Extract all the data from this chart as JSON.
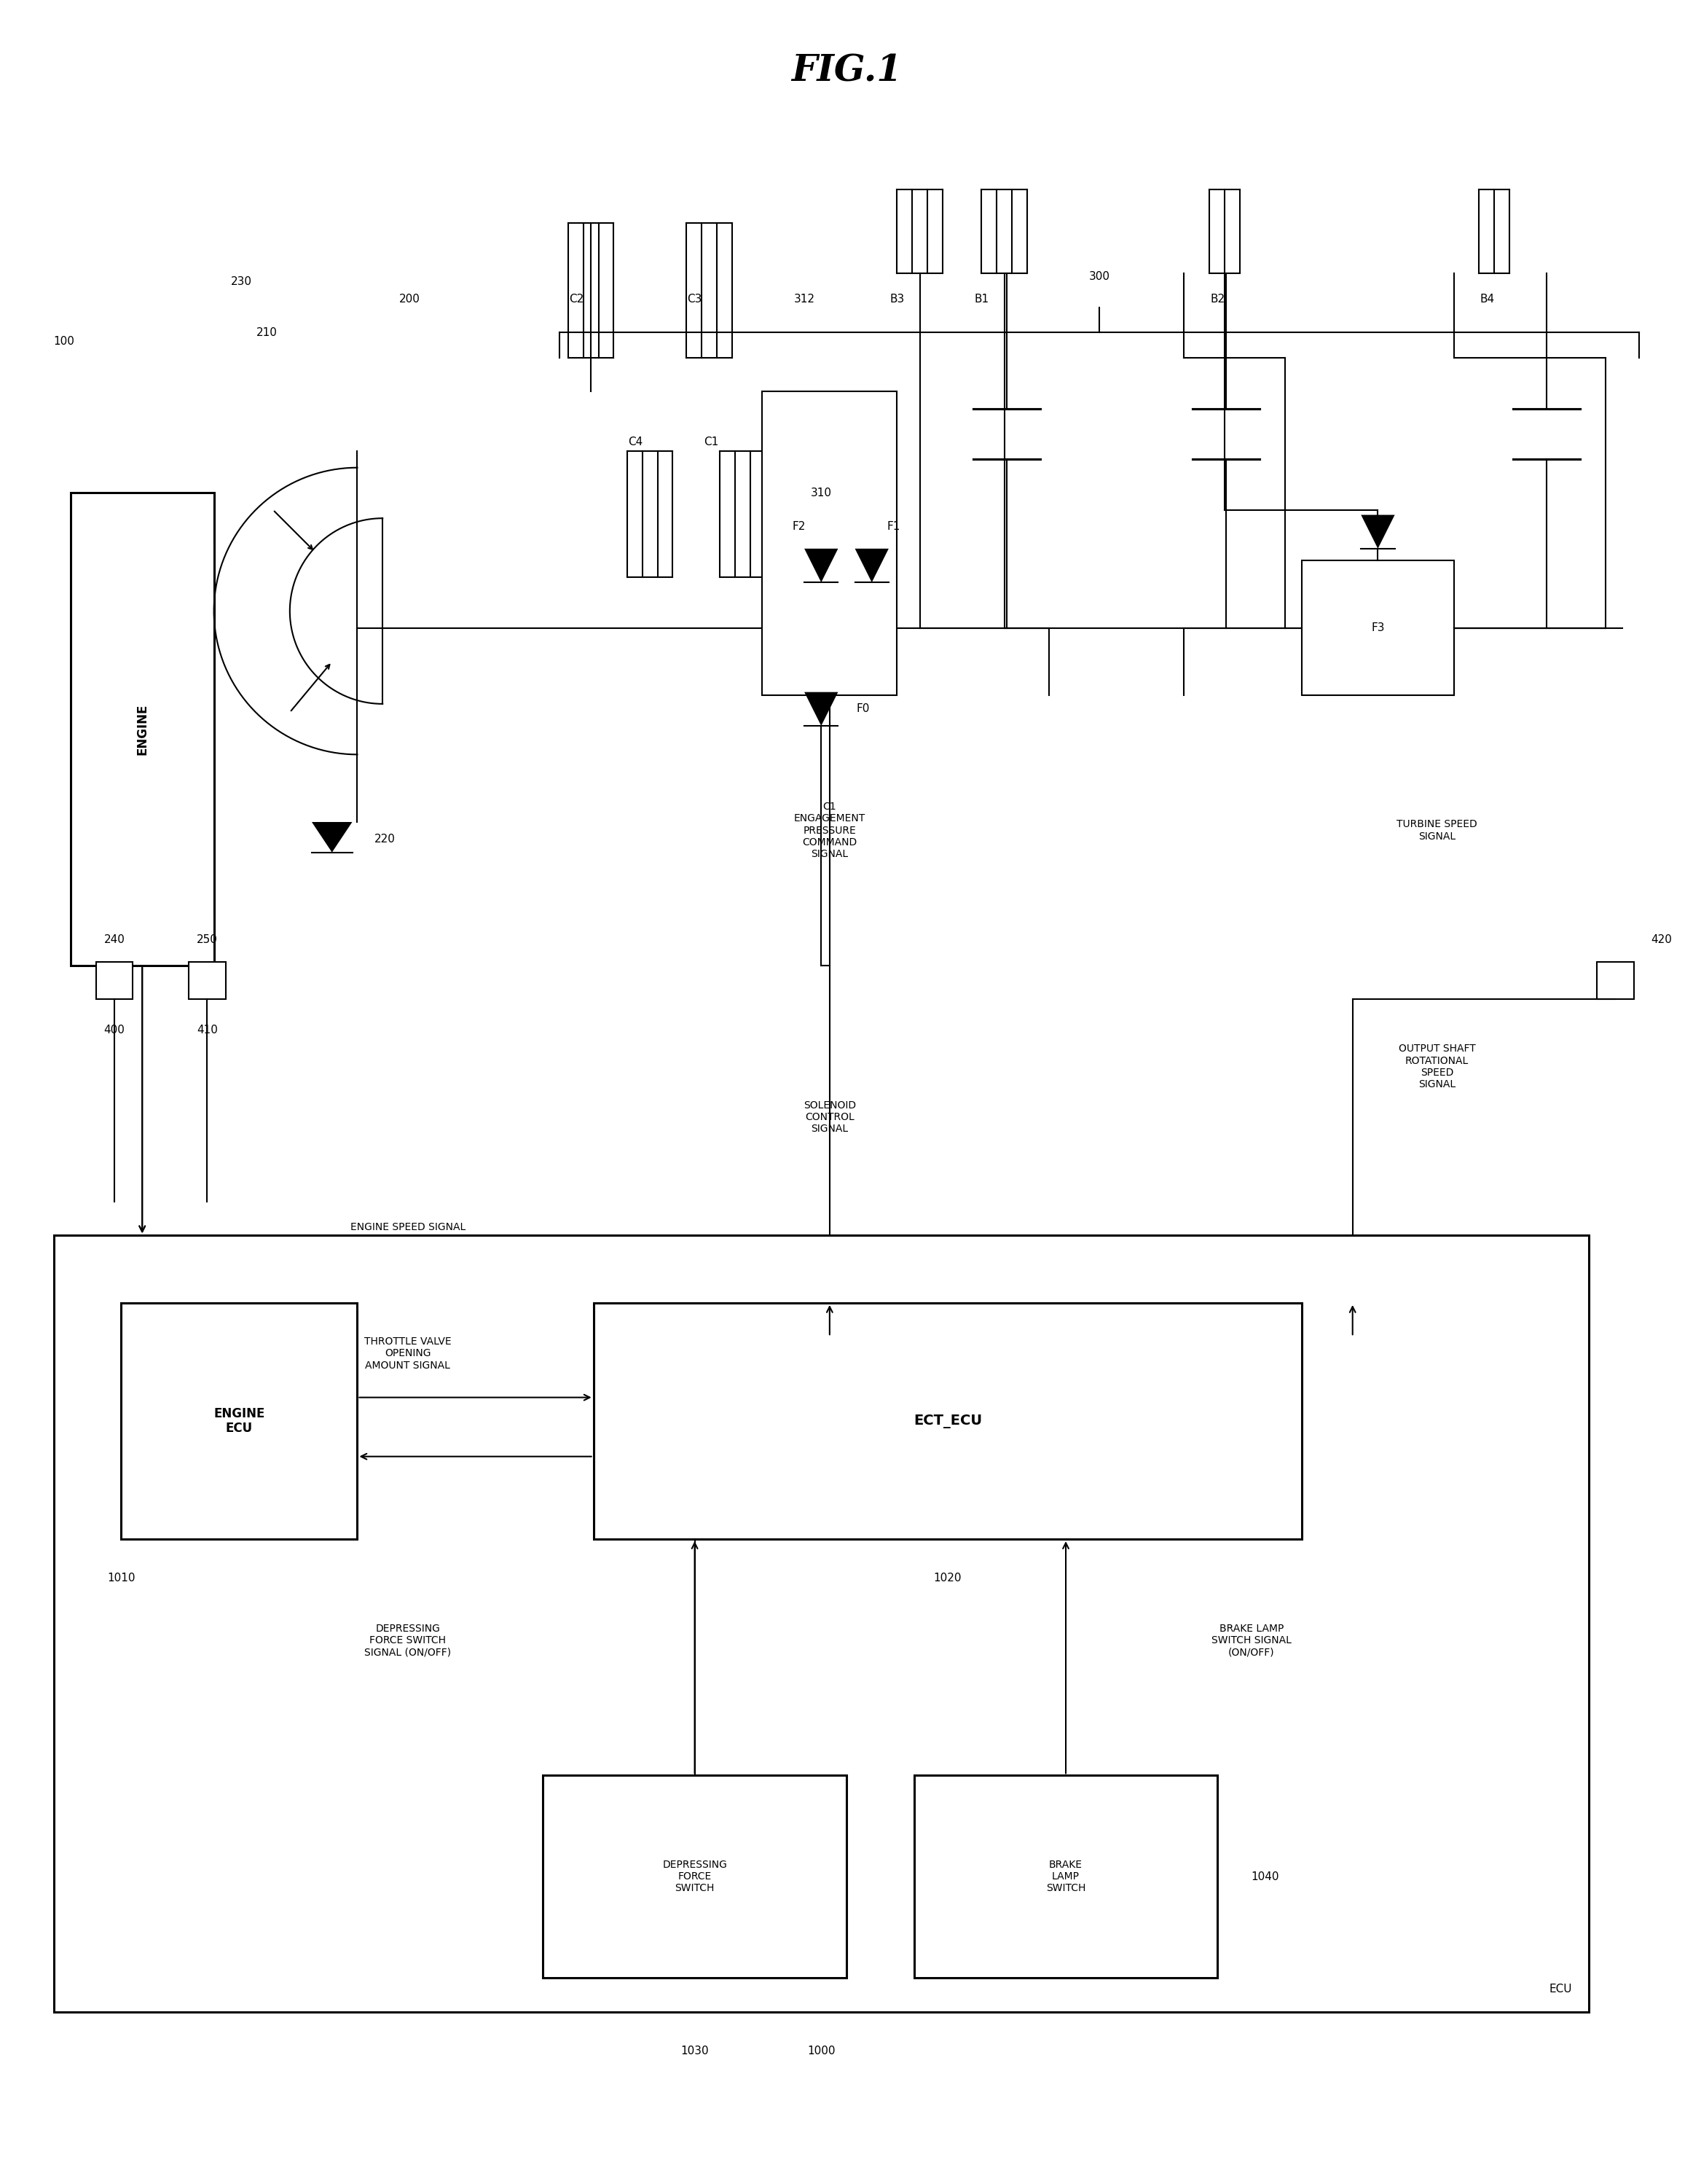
{
  "bg_color": "#ffffff",
  "fig_width": 23.24,
  "fig_height": 29.97,
  "labels": {
    "fig_title": "FIG.1",
    "label_300": "300",
    "label_100": "100",
    "label_230": "230",
    "label_200": "200",
    "label_312": "312",
    "label_B3": "B3",
    "label_B1": "B1",
    "label_B2": "B2",
    "label_B4": "B4",
    "label_210": "210",
    "label_C2": "C2",
    "label_C3": "C3",
    "label_310": "310",
    "label_C4": "C4",
    "label_C1": "C1",
    "label_F2": "F2",
    "label_F1": "F1",
    "label_F3": "F3",
    "label_F0": "F0",
    "label_220": "220",
    "label_240": "240",
    "label_250": "250",
    "label_400": "400",
    "label_410": "410",
    "label_420": "420",
    "label_engine": "ENGINE",
    "c1_engagement": "C1\nENGAGEMENT\nPRESSURE\nCOMMAND\nSIGNAL",
    "solenoid": "SOLENOID\nCONTROL\nSIGNAL",
    "turbine": "TURBINE SPEED\nSIGNAL",
    "output_shaft": "OUTPUT SHAFT\nROTATIONAL\nSPEED\nSIGNAL",
    "engine_speed": "ENGINE SPEED SIGNAL",
    "throttle_valve": "THROTTLE VALVE\nOPENING\nAMOUNT SIGNAL",
    "engine_ecu": "ENGINE\nECU",
    "ect_ecu": "ECT_ECU",
    "depressing_force_signal": "DEPRESSING\nFORCE SWITCH\nSIGNAL (ON/OFF)",
    "brake_lamp_signal": "BRAKE LAMP\nSWITCH SIGNAL\n(ON/OFF)",
    "depressing_switch": "DEPRESSING\nFORCE\nSWITCH",
    "brake_lamp_switch": "BRAKE\nLAMP\nSWITCH",
    "ecu_label": "ECU",
    "label_1000": "1000",
    "label_1010": "1010",
    "label_1020": "1020",
    "label_1030": "1030",
    "label_1040": "1040"
  }
}
